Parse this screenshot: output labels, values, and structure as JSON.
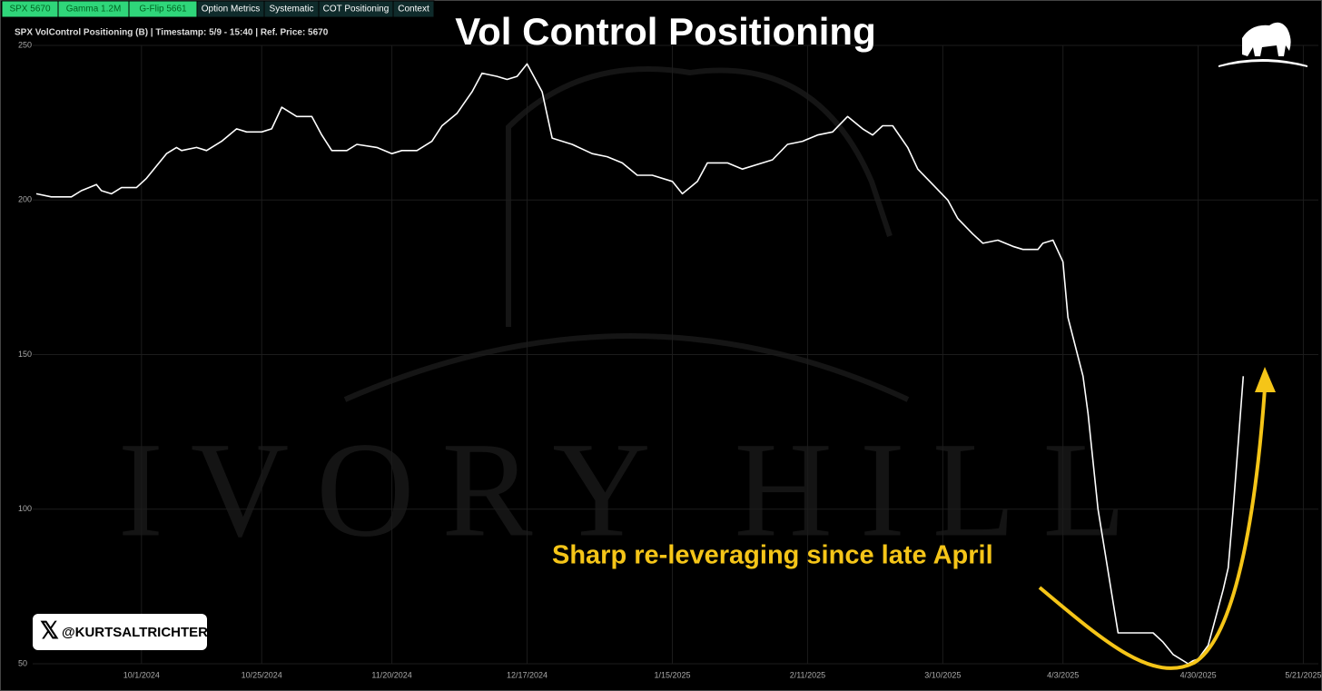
{
  "tabs": [
    "SPX 5670",
    "Gamma 1.2M",
    "G-Flip 5661",
    "Option Metrics",
    "Systematic",
    "COT Positioning",
    "Context"
  ],
  "watermark": "IVORY HILL",
  "handle": "@KURTSALTRICHTER",
  "chart_data": {
    "type": "line",
    "title": "Vol Control Positioning",
    "subtitle": "SPX VolControl Positioning (B) | Timestamp: 5/9 - 15:40  | Ref. Price: 5670",
    "annotation": "Sharp re-leveraging since late April",
    "color": "#ffffff",
    "grid": true,
    "x": [
      "9/10/2024",
      "9/13/2024",
      "9/17/2024",
      "9/19/2024",
      "9/22/2024",
      "9/23/2024",
      "9/25/2024",
      "9/27/2024",
      "9/30/2024",
      "10/2/2024",
      "10/4/2024",
      "10/6/2024",
      "10/8/2024",
      "10/9/2024",
      "10/12/2024",
      "10/14/2024",
      "10/17/2024",
      "10/20/2024",
      "10/22/2024",
      "10/25/2024",
      "10/27/2024",
      "10/29/2024",
      "11/1/2024",
      "11/4/2024",
      "11/6/2024",
      "11/8/2024",
      "11/11/2024",
      "11/13/2024",
      "11/17/2024",
      "11/20/2024",
      "11/22/2024",
      "11/25/2024",
      "11/28/2024",
      "11/30/2024",
      "12/3/2024",
      "12/6/2024",
      "12/8/2024",
      "12/11/2024",
      "12/13/2024",
      "12/15/2024",
      "12/17/2024",
      "12/20/2024",
      "12/22/2024",
      "12/26/2024",
      "12/30/2024",
      "1/2/2025",
      "1/5/2025",
      "1/8/2025",
      "1/11/2025",
      "1/15/2025",
      "1/17/2025",
      "1/20/2025",
      "1/22/2025",
      "1/26/2025",
      "1/29/2025",
      "2/2/2025",
      "2/4/2025",
      "2/7/2025",
      "2/10/2025",
      "2/13/2025",
      "2/16/2025",
      "2/19/2025",
      "2/22/2025",
      "2/24/2025",
      "2/26/2025",
      "2/28/2025",
      "3/3/2025",
      "3/5/2025",
      "3/8/2025",
      "3/11/2025",
      "3/13/2025",
      "3/16/2025",
      "3/18/2025",
      "3/21/2025",
      "3/24/2025",
      "3/26/2025",
      "3/29/2025",
      "3/30/2025",
      "4/1/2025",
      "4/3/2025",
      "4/4/2025",
      "4/7/2025",
      "4/8/2025",
      "4/10/2025",
      "4/14/2025",
      "4/17/2025",
      "4/21/2025",
      "4/23/2025",
      "4/25/2025",
      "4/28/2025",
      "4/29/2025",
      "4/30/2025",
      "5/2/2025",
      "5/5/2025",
      "5/6/2025",
      "5/7/2025",
      "5/9/2025"
    ],
    "values": [
      202,
      201,
      201,
      203,
      205,
      203,
      202,
      204,
      204,
      207,
      211,
      215,
      217,
      216,
      217,
      216,
      219,
      223,
      222,
      222,
      223,
      230,
      227,
      227,
      221,
      216,
      216,
      218,
      217,
      215,
      216,
      216,
      219,
      224,
      228,
      235,
      241,
      240,
      239,
      240,
      244,
      235,
      220,
      218,
      215,
      214,
      212,
      208,
      208,
      206,
      202,
      206,
      212,
      212,
      210,
      212,
      213,
      218,
      219,
      221,
      222,
      227,
      223,
      221,
      224,
      224,
      217,
      210,
      205,
      200,
      194,
      189,
      186,
      187,
      185,
      184,
      184,
      186,
      187,
      180,
      162,
      143,
      131,
      100,
      60,
      60,
      60,
      57,
      53,
      50,
      51,
      51.5,
      56,
      74,
      81,
      100,
      143
    ],
    "xlim": [
      "9/10/2024",
      "5/24/2025"
    ],
    "xticks": [
      "10/1/2024",
      "10/25/2024",
      "11/20/2024",
      "12/17/2024",
      "1/15/2025",
      "2/11/2025",
      "3/10/2025",
      "4/3/2025",
      "4/30/2025",
      "5/21/2025"
    ],
    "ylim": [
      50,
      250
    ],
    "yticks": [
      50,
      100,
      150,
      200,
      250
    ]
  }
}
